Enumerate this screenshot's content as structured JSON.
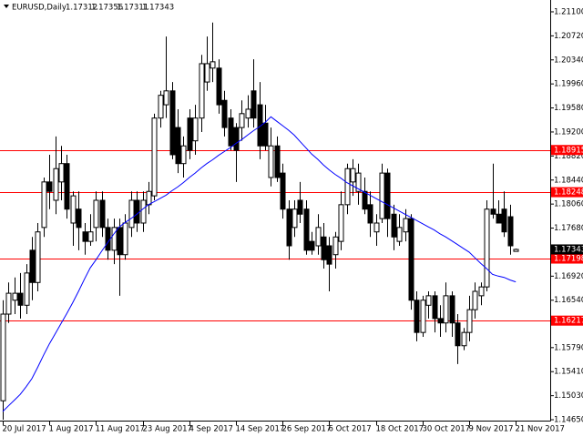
{
  "chart_data": {
    "type": "candlestick",
    "title": "EURUSD,Daily",
    "categories": [
      "20 Jul 2017",
      null,
      null,
      null,
      null,
      null,
      null,
      null,
      "1 Aug 2017",
      null,
      null,
      null,
      null,
      null,
      null,
      null,
      "11 Aug 2017",
      null,
      null,
      null,
      null,
      null,
      null,
      null,
      "23 Aug 2017",
      null,
      null,
      null,
      null,
      null,
      null,
      null,
      "4 Sep 2017",
      null,
      null,
      null,
      null,
      null,
      null,
      null,
      "14 Sep 2017",
      null,
      null,
      null,
      null,
      null,
      null,
      null,
      "26 Sep 2017",
      null,
      null,
      null,
      null,
      null,
      null,
      null,
      "6 Oct 2017",
      null,
      null,
      null,
      null,
      null,
      null,
      null,
      "18 Oct 2017",
      null,
      null,
      null,
      null,
      null,
      null,
      null,
      "30 Oct 2017",
      null,
      null,
      null,
      null,
      null,
      null,
      null,
      "9 Nov 2017",
      null,
      null,
      null,
      null,
      null,
      null,
      null,
      "21 Nov 2017"
    ],
    "open": [
      1.1495,
      1.1632,
      1.1654,
      1.1665,
      1.1646,
      1.1733,
      1.1682,
      1.1769,
      1.1841,
      1.1812,
      1.1841,
      1.187,
      1.1776,
      1.1798,
      1.1762,
      1.1747,
      1.1769,
      1.1812,
      1.1769,
      1.1733,
      1.1769,
      1.1726,
      1.1769,
      1.1812,
      1.1776,
      1.1805,
      1.1819,
      1.1942,
      1.1963,
      1.1985,
      1.1927,
      1.187,
      1.1942,
      1.1906,
      1.1942,
      1.1999,
      1.2021,
      1.2021,
      1.197,
      1.1942,
      1.1927,
      1.1927,
      1.1942,
      1.1985,
      1.1963,
      1.1934,
      1.1848,
      1.1898,
      1.1855,
      1.1798,
      1.1769,
      1.1812,
      1.1798,
      1.1747,
      1.174,
      1.1754,
      1.174,
      1.1726,
      1.1747,
      1.1805,
      1.1841,
      1.1826,
      1.1826,
      1.1805,
      1.1762,
      1.1783,
      1.1855,
      1.179,
      1.1747,
      1.1762,
      1.1783,
      1.1654,
      1.1603,
      1.1646,
      1.1661,
      1.1625,
      1.1618,
      1.1661,
      1.1618,
      1.1582,
      1.1603,
      1.1639,
      1.1661,
      1.1675,
      1.1798,
      1.179,
      1.1798,
      1.1786,
      1.17312
    ],
    "high": [
      1.1654,
      1.1682,
      1.169,
      1.1697,
      1.1711,
      1.1754,
      1.1776,
      1.1848,
      1.1884,
      1.1913,
      1.1898,
      1.1884,
      1.1826,
      1.1826,
      1.1776,
      1.179,
      1.1826,
      1.1826,
      1.1783,
      1.1783,
      1.1783,
      1.179,
      1.1826,
      1.1826,
      1.1826,
      1.1841,
      1.1949,
      1.1985,
      1.2071,
      1.1999,
      1.1956,
      1.1913,
      1.1956,
      1.1963,
      1.2042,
      1.2071,
      1.2093,
      1.2035,
      1.1985,
      1.1956,
      1.1934,
      1.197,
      1.1978,
      1.2035,
      1.1999,
      1.1963,
      1.1927,
      1.1913,
      1.187,
      1.1812,
      1.1812,
      1.1841,
      1.1812,
      1.1762,
      1.179,
      1.1776,
      1.1754,
      1.1762,
      1.1826,
      1.187,
      1.1877,
      1.187,
      1.1848,
      1.1826,
      1.179,
      1.187,
      1.1862,
      1.1805,
      1.179,
      1.1798,
      1.179,
      1.1668,
      1.1661,
      1.1668,
      1.1668,
      1.1646,
      1.1682,
      1.1668,
      1.1632,
      1.161,
      1.1661,
      1.1682,
      1.1682,
      1.1812,
      1.187,
      1.1812,
      1.1826,
      1.1805,
      1.17356
    ],
    "low": [
      1.1465,
      1.1618,
      1.1632,
      1.1625,
      1.1632,
      1.1654,
      1.1668,
      1.1754,
      1.1798,
      1.179,
      1.1812,
      1.1783,
      1.174,
      1.1733,
      1.1726,
      1.174,
      1.1747,
      1.1754,
      1.1718,
      1.1711,
      1.1661,
      1.1718,
      1.1754,
      1.1762,
      1.1762,
      1.179,
      1.1812,
      1.1927,
      1.1942,
      1.1877,
      1.1855,
      1.1848,
      1.1877,
      1.1884,
      1.192,
      1.1985,
      1.1999,
      1.1949,
      1.1913,
      1.1891,
      1.1841,
      1.1906,
      1.1927,
      1.1927,
      1.1877,
      1.1891,
      1.1834,
      1.1841,
      1.1783,
      1.1718,
      1.1754,
      1.1776,
      1.1726,
      1.1726,
      1.1726,
      1.1704,
      1.1668,
      1.1704,
      1.1733,
      1.179,
      1.1819,
      1.1805,
      1.179,
      1.1754,
      1.174,
      1.1776,
      1.1754,
      1.1733,
      1.174,
      1.1747,
      1.1639,
      1.1589,
      1.1596,
      1.1625,
      1.1603,
      1.1596,
      1.1603,
      1.1596,
      1.1553,
      1.1575,
      1.1589,
      1.1625,
      1.1646,
      1.1668,
      1.1783,
      1.1776,
      1.1754,
      1.1726,
      1.17311
    ],
    "close": [
      1.1632,
      1.1665,
      1.1665,
      1.1646,
      1.1697,
      1.1682,
      1.1762,
      1.1841,
      1.1826,
      1.1862,
      1.187,
      1.1798,
      1.1819,
      1.1769,
      1.1747,
      1.1762,
      1.1812,
      1.1769,
      1.1733,
      1.1769,
      1.1726,
      1.1776,
      1.1812,
      1.1776,
      1.1812,
      1.1826,
      1.1942,
      1.1978,
      1.1985,
      1.1884,
      1.187,
      1.1898,
      1.1891,
      1.1942,
      1.2028,
      1.2028,
      1.2031,
      1.1963,
      1.1927,
      1.1898,
      1.1891,
      1.1949,
      1.1956,
      1.1942,
      1.1898,
      1.1898,
      1.1898,
      1.1848,
      1.1798,
      1.174,
      1.1798,
      1.179,
      1.1733,
      1.1733,
      1.1769,
      1.1718,
      1.1711,
      1.1754,
      1.1805,
      1.1862,
      1.1862,
      1.1855,
      1.1798,
      1.1776,
      1.1776,
      1.1855,
      1.1783,
      1.1754,
      1.1769,
      1.1783,
      1.1654,
      1.1603,
      1.1654,
      1.1661,
      1.1625,
      1.1618,
      1.1661,
      1.1618,
      1.1582,
      1.1603,
      1.1639,
      1.1668,
      1.1675,
      1.1798,
      1.179,
      1.1776,
      1.1762,
      1.174,
      1.17343
    ],
    "ma": [
      1.1478,
      1.1487,
      1.1496,
      1.1505,
      1.1517,
      1.153,
      1.1548,
      1.1567,
      1.1585,
      1.1601,
      1.1617,
      1.1633,
      1.165,
      1.1668,
      1.1687,
      1.1705,
      1.1718,
      1.1732,
      1.1745,
      1.1758,
      1.177,
      1.1777,
      1.1783,
      1.179,
      1.1798,
      1.1805,
      1.181,
      1.1815,
      1.182,
      1.1827,
      1.1833,
      1.184,
      1.1848,
      1.1855,
      1.1863,
      1.187,
      1.1876,
      1.1883,
      1.1889,
      1.1895,
      1.1902,
      1.1908,
      1.1915,
      1.1922,
      1.1928,
      1.1935,
      1.1944,
      1.1937,
      1.193,
      1.1923,
      1.1915,
      1.1905,
      1.1895,
      1.1885,
      1.1877,
      1.1868,
      1.186,
      1.1853,
      1.1847,
      1.184,
      1.1835,
      1.183,
      1.1825,
      1.182,
      1.1815,
      1.181,
      1.1805,
      1.18,
      1.1795,
      1.179,
      1.1785,
      1.178,
      1.1775,
      1.177,
      1.1765,
      1.1759,
      1.1754,
      1.1748,
      1.1742,
      1.1736,
      1.173,
      1.1721,
      1.1712,
      1.1704,
      1.1695,
      1.1692,
      1.169,
      1.1686,
      1.1683
    ],
    "ma_color": "#0000ff",
    "up_color": "#ffffff",
    "down_color": "#000000",
    "hlines": [
      1.18915,
      1.18248,
      1.17198,
      1.16217
    ],
    "hline_color": "#ff0000",
    "ylim": [
      1.14636,
      1.21258
    ],
    "yticks": [
      {
        "value": 1.211,
        "label": "1.21100"
      },
      {
        "value": 1.2072,
        "label": "1.20720"
      },
      {
        "value": 1.2034,
        "label": "1.20340"
      },
      {
        "value": 1.1996,
        "label": "1.19960"
      },
      {
        "value": 1.1958,
        "label": "1.19580"
      },
      {
        "value": 1.192,
        "label": "1.19200"
      },
      {
        "value": 1.1882,
        "label": "1.18820"
      },
      {
        "value": 1.1844,
        "label": "1.18440"
      },
      {
        "value": 1.1806,
        "label": "1.18060"
      },
      {
        "value": 1.1768,
        "label": "1.17680"
      },
      {
        "value": 1.1692,
        "label": "1.16920"
      },
      {
        "value": 1.1654,
        "label": "1.16540"
      },
      {
        "value": 1.1579,
        "label": "1.15790"
      },
      {
        "value": 1.1541,
        "label": "1.15410"
      },
      {
        "value": 1.1503,
        "label": "1.15030"
      },
      {
        "value": 1.1465,
        "label": "1.14650"
      }
    ]
  }
}
